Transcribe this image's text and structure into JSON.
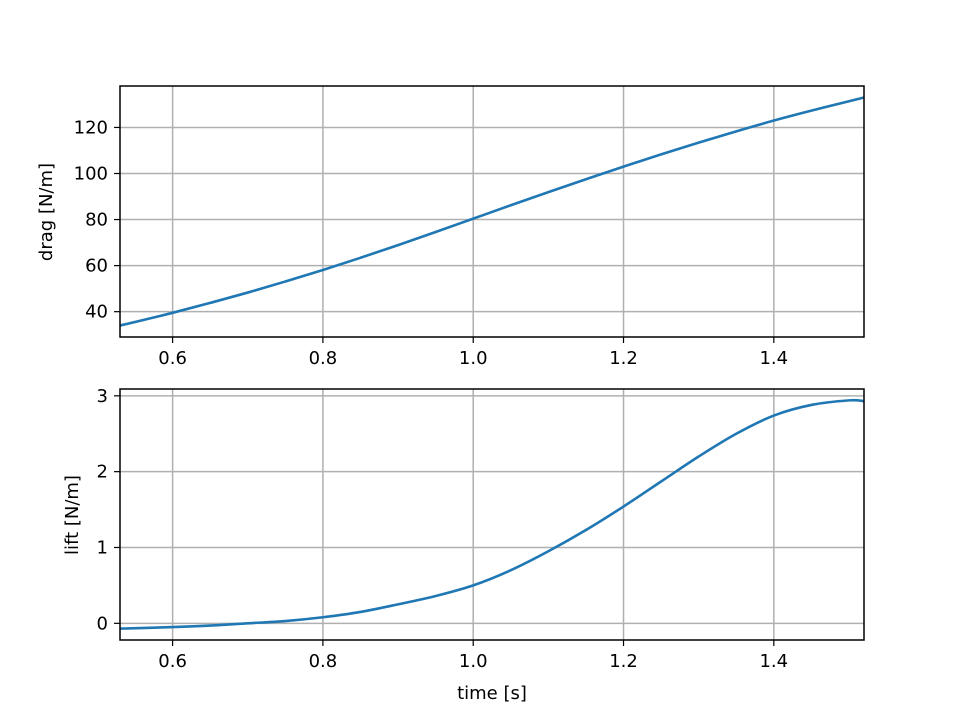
{
  "colors": {
    "series": "#1f77b4",
    "grid": "#b0b0b0",
    "axes": "#000000",
    "background": "#ffffff"
  },
  "chart_data": [
    {
      "type": "line",
      "title": "",
      "xlabel": "",
      "ylabel": "drag [N/m]",
      "xlim": [
        0.53,
        1.52
      ],
      "ylim": [
        29,
        138
      ],
      "grid": true,
      "xticks": [
        0.6,
        0.8,
        1.0,
        1.2,
        1.4
      ],
      "xtick_labels": [
        "0.6",
        "0.8",
        "1.0",
        "1.2",
        "1.4"
      ],
      "yticks": [
        40,
        60,
        80,
        100,
        120
      ],
      "ytick_labels": [
        "40",
        "60",
        "80",
        "100",
        "120"
      ],
      "series": [
        {
          "color": "#1f77b4",
          "x": [
            0.53,
            0.55,
            0.6,
            0.65,
            0.7,
            0.75,
            0.8,
            0.85,
            0.9,
            0.95,
            1.0,
            1.05,
            1.1,
            1.15,
            1.2,
            1.25,
            1.3,
            1.35,
            1.4,
            1.45,
            1.5,
            1.52
          ],
          "y": [
            34,
            35.5,
            39.5,
            43.8,
            48.3,
            53.1,
            58.1,
            63.4,
            68.9,
            74.6,
            80.4,
            86.2,
            91.9,
            97.5,
            103,
            108.3,
            113.4,
            118.3,
            123,
            127.3,
            131.4,
            133
          ]
        }
      ]
    },
    {
      "type": "line",
      "title": "",
      "xlabel": "time [s]",
      "ylabel": "lift [N/m]",
      "xlim": [
        0.53,
        1.52
      ],
      "ylim": [
        -0.22,
        3.09
      ],
      "grid": true,
      "xticks": [
        0.6,
        0.8,
        1.0,
        1.2,
        1.4
      ],
      "xtick_labels": [
        "0.6",
        "0.8",
        "1.0",
        "1.2",
        "1.4"
      ],
      "yticks": [
        0,
        1,
        2,
        3
      ],
      "ytick_labels": [
        "0",
        "1",
        "2",
        "3"
      ],
      "series": [
        {
          "color": "#1f77b4",
          "x": [
            0.53,
            0.6,
            0.65,
            0.7,
            0.75,
            0.8,
            0.85,
            0.9,
            0.95,
            1.0,
            1.05,
            1.1,
            1.15,
            1.2,
            1.25,
            1.3,
            1.35,
            1.4,
            1.45,
            1.5,
            1.52
          ],
          "y": [
            -0.07,
            -0.05,
            -0.03,
            0.0,
            0.03,
            0.08,
            0.15,
            0.25,
            0.36,
            0.5,
            0.7,
            0.95,
            1.23,
            1.54,
            1.87,
            2.2,
            2.5,
            2.74,
            2.88,
            2.94,
            2.93
          ]
        }
      ]
    }
  ]
}
